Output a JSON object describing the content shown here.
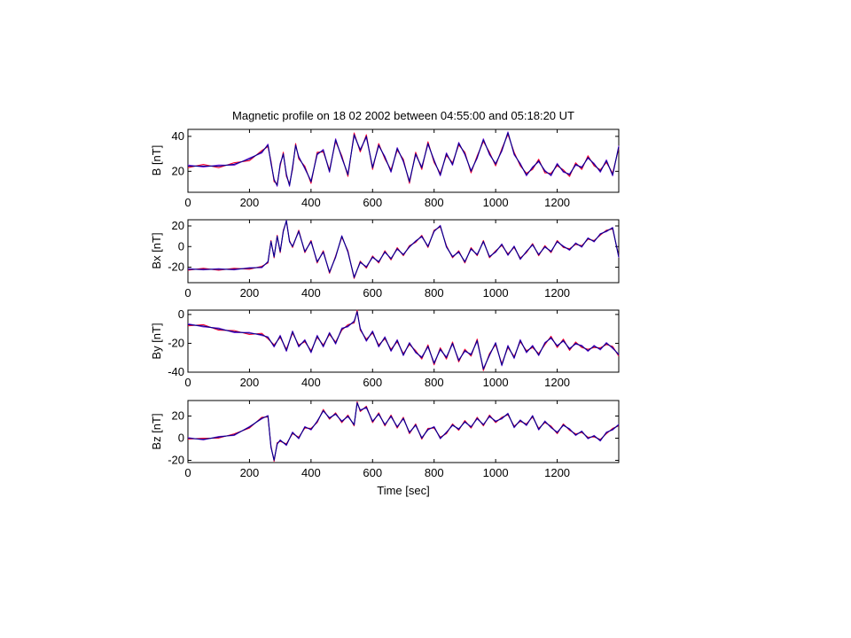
{
  "title": "Magnetic profile on 18 02 2002 between 04:55:00 and 05:18:20 UT",
  "xlabel": "Time [sec]",
  "colors": {
    "series1": "#00008b",
    "series2": "#ff0033",
    "series3": "#8a2be2",
    "axis": "#000000"
  },
  "chart_data": [
    {
      "type": "line",
      "ylabel": "B [nT]",
      "xlim": [
        0,
        1400
      ],
      "ylim": [
        8,
        44
      ],
      "xticks": [
        0,
        200,
        400,
        600,
        800,
        1000,
        1200
      ],
      "yticks": [
        20,
        40
      ],
      "series": [
        {
          "x": [
            0,
            50,
            100,
            150,
            200,
            240,
            260,
            270,
            280,
            290,
            300,
            310,
            320,
            330,
            340,
            350,
            360,
            380,
            400,
            420,
            440,
            460,
            480,
            500,
            520,
            540,
            560,
            580,
            600,
            620,
            640,
            660,
            680,
            700,
            720,
            740,
            760,
            780,
            800,
            820,
            840,
            860,
            880,
            900,
            920,
            940,
            960,
            980,
            1000,
            1020,
            1040,
            1060,
            1080,
            1100,
            1120,
            1140,
            1160,
            1180,
            1200,
            1220,
            1240,
            1260,
            1280,
            1300,
            1320,
            1340,
            1360,
            1380,
            1400
          ],
          "y": [
            23,
            23,
            23,
            24,
            27,
            31,
            35,
            25,
            15,
            12,
            24,
            30,
            18,
            12,
            22,
            35,
            28,
            22,
            14,
            30,
            32,
            20,
            38,
            28,
            18,
            41,
            32,
            40,
            22,
            35,
            28,
            20,
            33,
            26,
            14,
            30,
            22,
            36,
            26,
            18,
            30,
            24,
            36,
            30,
            20,
            28,
            38,
            30,
            24,
            32,
            42,
            30,
            24,
            18,
            22,
            26,
            20,
            18,
            24,
            20,
            18,
            24,
            22,
            28,
            24,
            20,
            26,
            18,
            34
          ]
        }
      ]
    },
    {
      "type": "line",
      "ylabel": "Bx [nT]",
      "xlim": [
        0,
        1400
      ],
      "ylim": [
        -35,
        26
      ],
      "xticks": [
        0,
        200,
        400,
        600,
        800,
        1000,
        1200
      ],
      "yticks": [
        -20,
        0,
        20
      ],
      "series": [
        {
          "x": [
            0,
            50,
            100,
            150,
            200,
            240,
            260,
            270,
            280,
            290,
            300,
            310,
            320,
            330,
            340,
            360,
            380,
            400,
            420,
            440,
            460,
            480,
            500,
            520,
            540,
            560,
            580,
            600,
            620,
            640,
            660,
            680,
            700,
            720,
            740,
            760,
            780,
            800,
            820,
            840,
            860,
            880,
            900,
            920,
            940,
            960,
            980,
            1000,
            1020,
            1040,
            1060,
            1080,
            1100,
            1120,
            1140,
            1160,
            1180,
            1200,
            1220,
            1240,
            1260,
            1280,
            1300,
            1320,
            1340,
            1360,
            1380,
            1400
          ],
          "y": [
            -22,
            -22,
            -22,
            -22,
            -21,
            -20,
            -15,
            5,
            -10,
            10,
            -5,
            15,
            25,
            5,
            0,
            15,
            -5,
            5,
            -15,
            -5,
            -25,
            -10,
            10,
            -5,
            -30,
            -15,
            -20,
            -10,
            -15,
            -5,
            -12,
            -2,
            -8,
            0,
            5,
            10,
            0,
            15,
            20,
            0,
            -10,
            -5,
            -15,
            -2,
            -8,
            5,
            -10,
            -5,
            2,
            -8,
            0,
            -12,
            -5,
            2,
            -8,
            0,
            -5,
            5,
            0,
            -3,
            3,
            0,
            8,
            5,
            12,
            15,
            18,
            -10
          ]
        }
      ]
    },
    {
      "type": "line",
      "ylabel": "By [nT]",
      "xlim": [
        0,
        1400
      ],
      "ylim": [
        -40,
        3
      ],
      "xticks": [
        0,
        200,
        400,
        600,
        800,
        1000,
        1200
      ],
      "yticks": [
        -40,
        -20,
        0
      ],
      "series": [
        {
          "x": [
            0,
            50,
            100,
            150,
            200,
            240,
            260,
            280,
            300,
            320,
            340,
            360,
            380,
            400,
            420,
            440,
            460,
            480,
            500,
            520,
            540,
            550,
            560,
            580,
            600,
            620,
            640,
            660,
            680,
            700,
            720,
            740,
            760,
            780,
            800,
            820,
            840,
            860,
            880,
            900,
            920,
            940,
            960,
            980,
            1000,
            1020,
            1040,
            1060,
            1080,
            1100,
            1120,
            1140,
            1160,
            1180,
            1200,
            1220,
            1240,
            1260,
            1280,
            1300,
            1320,
            1340,
            1360,
            1380,
            1400
          ],
          "y": [
            -7,
            -8,
            -10,
            -12,
            -13,
            -14,
            -16,
            -22,
            -15,
            -25,
            -12,
            -22,
            -18,
            -26,
            -15,
            -22,
            -13,
            -20,
            -10,
            -8,
            -5,
            2,
            -10,
            -18,
            -12,
            -22,
            -16,
            -25,
            -18,
            -28,
            -20,
            -26,
            -30,
            -22,
            -34,
            -24,
            -30,
            -20,
            -32,
            -25,
            -28,
            -18,
            -38,
            -28,
            -20,
            -35,
            -22,
            -30,
            -18,
            -26,
            -22,
            -28,
            -20,
            -16,
            -22,
            -18,
            -24,
            -20,
            -22,
            -25,
            -22,
            -24,
            -20,
            -23,
            -28
          ]
        }
      ]
    },
    {
      "type": "line",
      "ylabel": "Bz [nT]",
      "xlim": [
        0,
        1400
      ],
      "ylim": [
        -22,
        34
      ],
      "xticks": [
        0,
        200,
        400,
        600,
        800,
        1000,
        1200
      ],
      "yticks": [
        -20,
        0,
        20
      ],
      "series": [
        {
          "x": [
            0,
            50,
            100,
            150,
            200,
            240,
            260,
            270,
            280,
            290,
            300,
            320,
            340,
            360,
            380,
            400,
            420,
            440,
            460,
            480,
            500,
            520,
            540,
            550,
            560,
            580,
            600,
            620,
            640,
            660,
            680,
            700,
            720,
            740,
            760,
            780,
            800,
            820,
            840,
            860,
            880,
            900,
            920,
            940,
            960,
            980,
            1000,
            1020,
            1040,
            1060,
            1080,
            1100,
            1120,
            1140,
            1160,
            1180,
            1200,
            1220,
            1240,
            1260,
            1280,
            1300,
            1320,
            1340,
            1360,
            1380,
            1400
          ],
          "y": [
            0,
            -1,
            1,
            3,
            10,
            18,
            20,
            -8,
            -20,
            -5,
            -2,
            -6,
            5,
            0,
            10,
            8,
            15,
            25,
            18,
            22,
            15,
            20,
            12,
            32,
            25,
            28,
            15,
            22,
            12,
            20,
            10,
            18,
            5,
            12,
            0,
            8,
            10,
            0,
            5,
            12,
            8,
            15,
            10,
            18,
            12,
            20,
            15,
            18,
            22,
            10,
            16,
            12,
            20,
            8,
            15,
            10,
            5,
            12,
            8,
            3,
            6,
            0,
            2,
            -2,
            5,
            8,
            12
          ]
        }
      ]
    }
  ],
  "xtick_labels": [
    "0",
    "200",
    "400",
    "600",
    "800",
    "1000",
    "1200"
  ]
}
